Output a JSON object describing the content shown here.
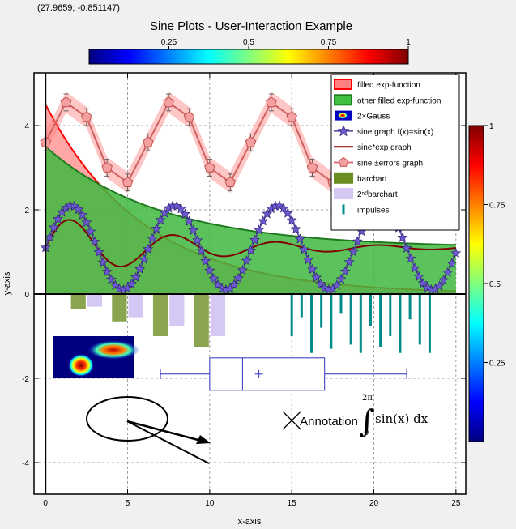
{
  "window": {
    "coordinate_readout": "(27.9659; -0.851147)"
  },
  "chart_data": {
    "type": "line",
    "title": "Sine Plots - User-Interaction Example",
    "xlabel": "x-axis",
    "ylabel": "y-axis",
    "xlim": [
      -0.7,
      25.6
    ],
    "ylim": [
      -4.75,
      5.25
    ],
    "grid": true,
    "x_ticks": [
      "0",
      "5",
      "10",
      "15",
      "20",
      "25"
    ],
    "y_ticks": [
      "-4",
      "-2",
      "0",
      "2",
      "4"
    ],
    "legend": {
      "placement": "top-right",
      "entries": [
        {
          "label": "filled exp-function",
          "kind": "fill",
          "color": "#ff8080",
          "edge": "#ff0000"
        },
        {
          "label": "other filled exp-function",
          "kind": "fill",
          "color": "#40c040",
          "edge": "#208020"
        },
        {
          "label": "2×Gauss",
          "kind": "image"
        },
        {
          "label": "sine graph f(x)=sin(x)",
          "kind": "line-star",
          "color": "#5040a0"
        },
        {
          "label": "sine*exp graph",
          "kind": "line",
          "color": "#800000"
        },
        {
          "label": "sine ±errors graph",
          "kind": "line-pentagon",
          "color": "#e07070"
        },
        {
          "label": "barchart",
          "kind": "bar",
          "color": "#6b8e23"
        },
        {
          "label": "2ⁿᵈbarchart",
          "kind": "bar",
          "color": "#d6c8f5"
        },
        {
          "label": "impulses",
          "kind": "impulse",
          "color": "#008b8b"
        }
      ]
    },
    "series": [
      {
        "name": "filled exp-function",
        "function": "4.5*exp(-x/6)",
        "x_range": [
          0,
          25
        ]
      },
      {
        "name": "other filled exp-function",
        "function": "1.1+2.4*exp(-x/7)",
        "x_range": [
          0,
          25
        ]
      },
      {
        "name": "sine graph f(x)=sin(x)",
        "function": "1.1+sin(x)",
        "x_range": [
          0,
          25
        ]
      },
      {
        "name": "sine*exp graph",
        "function": "1.1+0.8*sin(x)*exp(-x/8)",
        "x_range": [
          0,
          25
        ]
      },
      {
        "name": "sine ±errors graph",
        "x": [
          0,
          1.25,
          2.5,
          3.75,
          5,
          6.25,
          7.5,
          8.75,
          10,
          11.25,
          12.5,
          13.75,
          15,
          16.25,
          17.5,
          18.75,
          20
        ],
        "y": [
          3.6,
          4.55,
          4.2,
          3.0,
          2.65,
          3.6,
          4.55,
          4.2,
          3.0,
          2.65,
          3.6,
          4.55,
          4.2,
          3.0,
          2.65,
          3.6,
          4.2
        ],
        "errors": [
          0.2,
          0.2,
          0.2,
          0.2,
          0.2,
          0.2,
          0.2,
          0.2,
          0.2,
          0.2,
          0.2,
          0.2,
          0.2,
          0.2,
          0.2,
          0.2,
          0.2
        ]
      },
      {
        "name": "barchart",
        "x": [
          2,
          4.5,
          7,
          9.5
        ],
        "values": [
          -0.35,
          -0.65,
          -1.0,
          -1.25
        ],
        "width": 0.9
      },
      {
        "name": "2ⁿᵈbarchart",
        "x": [
          3,
          5.5,
          8,
          10.5
        ],
        "values": [
          -0.3,
          -0.55,
          -0.75,
          -1.0
        ],
        "width": 0.9
      },
      {
        "name": "impulses",
        "x": [
          15,
          15.6,
          16.2,
          16.8,
          17.4,
          18.0,
          18.6,
          19.2,
          19.8,
          20.4,
          21.0,
          21.6,
          22.2,
          22.8,
          23.4
        ],
        "values": [
          -1.0,
          -0.55,
          -1.4,
          -0.8,
          -1.3,
          -0.45,
          -1.2,
          -1.4,
          -0.75,
          -1.25,
          -1.0,
          -1.4,
          -0.6,
          -1.2,
          -1.4
        ]
      }
    ],
    "boxplot": {
      "x_min": 7,
      "q1": 10,
      "median": 12,
      "mean": 13,
      "q3": 17,
      "x_max": 22,
      "y": -1.9
    },
    "annotation": {
      "text": "Annotation",
      "formula_upper": "2π",
      "formula_lower": "0",
      "formula_body": "sin(x) dx",
      "marker_x": 15,
      "marker_y": -3.0
    },
    "colorbars": {
      "top": {
        "ticks": [
          "0.25",
          "0.5",
          "0.75",
          "1"
        ],
        "range": [
          0,
          1
        ]
      },
      "right": {
        "ticks": [
          "1",
          "0.75",
          "0.5",
          "0.25"
        ],
        "range": [
          0,
          1
        ]
      }
    },
    "colors": {
      "grid": "#888888",
      "background": "#ffffff",
      "frame": "#000000"
    }
  }
}
